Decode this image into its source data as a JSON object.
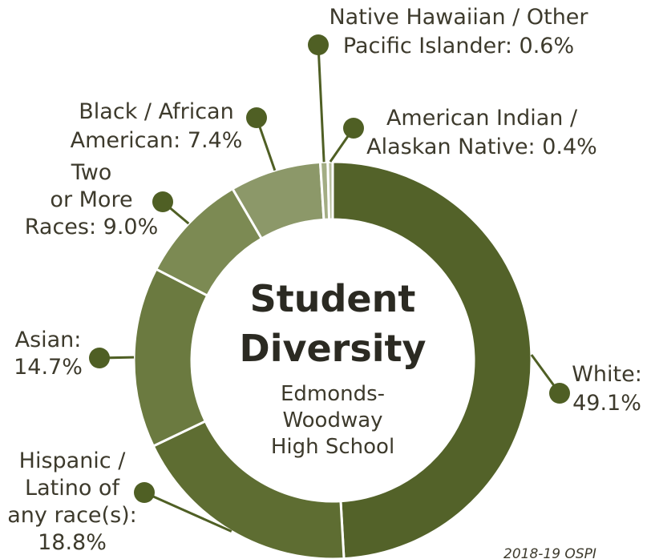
{
  "chart_data": {
    "type": "pie",
    "title": "Student Diversity",
    "subtitle_lines": [
      "Edmonds-",
      "Woodway",
      "High School"
    ],
    "source": "2018-19 OSPI",
    "slices": [
      {
        "name": "White",
        "value": 49.1,
        "color": "#536229",
        "label_lines": [
          "White:",
          "49.1%"
        ]
      },
      {
        "name": "Hispanic / Latino of any race(s)",
        "value": 18.8,
        "color": "#5e6d32",
        "label_lines": [
          "Hispanic /",
          "Latino of",
          "any race(s):",
          "18.8%"
        ]
      },
      {
        "name": "Asian",
        "value": 14.7,
        "color": "#6b7a40",
        "label_lines": [
          "Asian:",
          "14.7%"
        ]
      },
      {
        "name": "Two or More Races",
        "value": 9.0,
        "color": "#7c8a53",
        "label_lines": [
          "Two",
          "or More",
          "Races: 9.0%"
        ]
      },
      {
        "name": "Black / African American",
        "value": 7.4,
        "color": "#8c9869",
        "label_lines": [
          "Black / African",
          "American: 7.4%"
        ]
      },
      {
        "name": "Native Hawaiian / Other Pacific Islander",
        "value": 0.6,
        "color": "#a3ad84",
        "label_lines": [
          "Native Hawaiian / Other",
          "Pacific Islander: 0.6%"
        ]
      },
      {
        "name": "American Indian / Alaskan Native",
        "value": 0.4,
        "color": "#b6be9b",
        "label_lines": [
          "American Indian /",
          "Alaskan Native: 0.4%"
        ]
      }
    ],
    "colors": {
      "leader": "#4f5f24",
      "dot": "#4f5f24",
      "separator": "#ffffff"
    }
  }
}
